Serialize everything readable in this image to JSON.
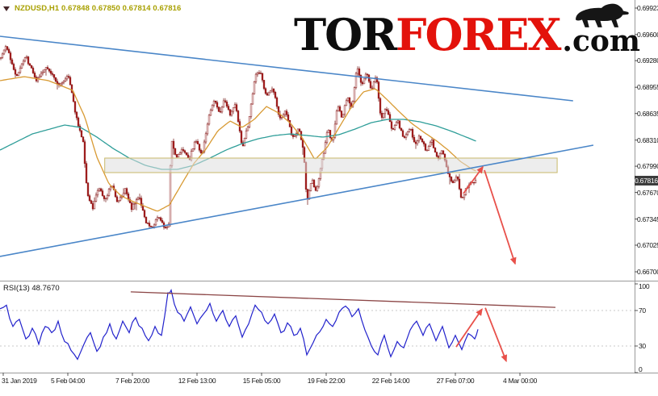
{
  "header": {
    "symbol_info": "NZDUSD,H1 0.67848 0.67850 0.67814 0.67816"
  },
  "logo": {
    "prefix": "TOR",
    "main": "FOREX",
    "suffix": ".com",
    "main_color": "#e3120b",
    "text_color": "#0d0d0d"
  },
  "price_axis": {
    "labels": [
      0.69923,
      0.696,
      0.6928,
      0.68955,
      0.68635,
      0.6831,
      0.6799,
      0.6767,
      0.67345,
      0.67025,
      0.667
    ],
    "current_price": "0.67816"
  },
  "rsi_panel": {
    "label": "RSI(13) 48.7670",
    "axis_labels": [
      100,
      70,
      30,
      0
    ]
  },
  "time_axis": {
    "labels": [
      "31 Jan 2019",
      "5 Feb 04:00",
      "7 Feb 20:00",
      "12 Feb 13:00",
      "15 Feb 05:00",
      "19 Feb 22:00",
      "22 Feb 14:00",
      "27 Feb 07:00",
      "4 Mar 00:00"
    ]
  },
  "chart_data": {
    "type": "candlestick",
    "symbol": "NZDUSD",
    "timeframe": "H1",
    "quote": {
      "open": 0.67848,
      "high": 0.6785,
      "low": 0.67814,
      "close": 0.67816
    },
    "y_range": [
      0.667,
      0.69923
    ],
    "grid": false,
    "arrow_color": "#e8504a",
    "price_path": [
      [
        0,
        0.69312
      ],
      [
        0.0102,
        0.6946
      ],
      [
        0.0254,
        0.69085
      ],
      [
        0.0407,
        0.69331
      ],
      [
        0.0573,
        0.69036
      ],
      [
        0.0738,
        0.69213
      ],
      [
        0.0916,
        0.68987
      ],
      [
        0.1081,
        0.69085
      ],
      [
        0.1209,
        0.68563
      ],
      [
        0.131,
        0.68297
      ],
      [
        0.1374,
        0.67656
      ],
      [
        0.1463,
        0.67479
      ],
      [
        0.1552,
        0.67735
      ],
      [
        0.1654,
        0.67577
      ],
      [
        0.1756,
        0.67774
      ],
      [
        0.1858,
        0.67538
      ],
      [
        0.1972,
        0.67705
      ],
      [
        0.2074,
        0.67479
      ],
      [
        0.2188,
        0.67637
      ],
      [
        0.229,
        0.67311
      ],
      [
        0.2392,
        0.67223
      ],
      [
        0.2494,
        0.674
      ],
      [
        0.2595,
        0.67223
      ],
      [
        0.2659,
        0.67282
      ],
      [
        0.2697,
        0.68346
      ],
      [
        0.2774,
        0.681
      ],
      [
        0.2875,
        0.68218
      ],
      [
        0.2977,
        0.6805
      ],
      [
        0.3079,
        0.68326
      ],
      [
        0.3181,
        0.68129
      ],
      [
        0.3282,
        0.68563
      ],
      [
        0.3384,
        0.68819
      ],
      [
        0.3461,
        0.68642
      ],
      [
        0.3537,
        0.68819
      ],
      [
        0.3626,
        0.68622
      ],
      [
        0.3715,
        0.6874
      ],
      [
        0.3817,
        0.68218
      ],
      [
        0.3919,
        0.68523
      ],
      [
        0.402,
        0.69085
      ],
      [
        0.4097,
        0.69154
      ],
      [
        0.4198,
        0.68839
      ],
      [
        0.43,
        0.68957
      ],
      [
        0.4402,
        0.68563
      ],
      [
        0.4504,
        0.68661
      ],
      [
        0.4606,
        0.68326
      ],
      [
        0.4707,
        0.68445
      ],
      [
        0.4784,
        0.68198
      ],
      [
        0.4835,
        0.67558
      ],
      [
        0.4911,
        0.67833
      ],
      [
        0.4987,
        0.67676
      ],
      [
        0.5064,
        0.68001
      ],
      [
        0.5165,
        0.68445
      ],
      [
        0.5242,
        0.68267
      ],
      [
        0.5318,
        0.6876
      ],
      [
        0.5394,
        0.68563
      ],
      [
        0.5471,
        0.68859
      ],
      [
        0.5547,
        0.68691
      ],
      [
        0.5623,
        0.69213
      ],
      [
        0.57,
        0.68987
      ],
      [
        0.5776,
        0.69154
      ],
      [
        0.5852,
        0.68918
      ],
      [
        0.5929,
        0.69085
      ],
      [
        0.6005,
        0.68563
      ],
      [
        0.6081,
        0.6872
      ],
      [
        0.6183,
        0.68425
      ],
      [
        0.626,
        0.68563
      ],
      [
        0.6361,
        0.68326
      ],
      [
        0.6463,
        0.68464
      ],
      [
        0.6539,
        0.68237
      ],
      [
        0.6616,
        0.68366
      ],
      [
        0.6718,
        0.68178
      ],
      [
        0.6794,
        0.68326
      ],
      [
        0.6896,
        0.6807
      ],
      [
        0.6972,
        0.68198
      ],
      [
        0.7048,
        0.67932
      ],
      [
        0.7125,
        0.67774
      ],
      [
        0.7201,
        0.67873
      ],
      [
        0.7277,
        0.67577
      ],
      [
        0.7354,
        0.67735
      ],
      [
        0.743,
        0.67794
      ],
      [
        0.7506,
        0.67816
      ]
    ],
    "ma_fast": {
      "name": "ma-orange",
      "color": "#d89a33",
      "points": [
        [
          0,
          0.69036
        ],
        [
          0.0382,
          0.69085
        ],
        [
          0.0763,
          0.69036
        ],
        [
          0.1145,
          0.68918
        ],
        [
          0.1336,
          0.68592
        ],
        [
          0.1527,
          0.681
        ],
        [
          0.1718,
          0.67774
        ],
        [
          0.1908,
          0.67627
        ],
        [
          0.2099,
          0.67558
        ],
        [
          0.229,
          0.67498
        ],
        [
          0.2481,
          0.67439
        ],
        [
          0.2672,
          0.67518
        ],
        [
          0.2863,
          0.67774
        ],
        [
          0.3053,
          0.68021
        ],
        [
          0.3244,
          0.68198
        ],
        [
          0.3435,
          0.68425
        ],
        [
          0.3626,
          0.68543
        ],
        [
          0.3817,
          0.68464
        ],
        [
          0.4008,
          0.68563
        ],
        [
          0.4198,
          0.6872
        ],
        [
          0.4389,
          0.68642
        ],
        [
          0.458,
          0.68513
        ],
        [
          0.4771,
          0.68326
        ],
        [
          0.4962,
          0.6807
        ],
        [
          0.5153,
          0.68218
        ],
        [
          0.5344,
          0.68464
        ],
        [
          0.5534,
          0.6871
        ],
        [
          0.5725,
          0.68898
        ],
        [
          0.5916,
          0.68937
        ],
        [
          0.6107,
          0.68799
        ],
        [
          0.6298,
          0.68651
        ],
        [
          0.6489,
          0.68513
        ],
        [
          0.6679,
          0.68405
        ],
        [
          0.687,
          0.68306
        ],
        [
          0.7061,
          0.68188
        ],
        [
          0.7252,
          0.6805
        ],
        [
          0.7443,
          0.67952
        ],
        [
          0.7532,
          0.67922
        ]
      ]
    },
    "ma_slow": {
      "name": "ma-teal",
      "color": "#2f9e99",
      "points": [
        [
          0,
          0.68188
        ],
        [
          0.0509,
          0.68385
        ],
        [
          0.1018,
          0.68494
        ],
        [
          0.1272,
          0.68464
        ],
        [
          0.1527,
          0.68346
        ],
        [
          0.1781,
          0.68208
        ],
        [
          0.2036,
          0.6809
        ],
        [
          0.229,
          0.68001
        ],
        [
          0.2545,
          0.67952
        ],
        [
          0.2799,
          0.67952
        ],
        [
          0.3053,
          0.68001
        ],
        [
          0.3308,
          0.6809
        ],
        [
          0.3562,
          0.68188
        ],
        [
          0.3817,
          0.68267
        ],
        [
          0.4071,
          0.68326
        ],
        [
          0.4326,
          0.68366
        ],
        [
          0.458,
          0.68385
        ],
        [
          0.4835,
          0.68366
        ],
        [
          0.5089,
          0.68346
        ],
        [
          0.5344,
          0.68376
        ],
        [
          0.5598,
          0.68445
        ],
        [
          0.5852,
          0.68523
        ],
        [
          0.6107,
          0.68563
        ],
        [
          0.6361,
          0.68563
        ],
        [
          0.6616,
          0.68533
        ],
        [
          0.687,
          0.68484
        ],
        [
          0.7125,
          0.68415
        ],
        [
          0.7379,
          0.68336
        ],
        [
          0.7532,
          0.68287
        ]
      ]
    },
    "trendlines": [
      {
        "name": "descending-resistance-line",
        "color": "#4a86c8",
        "from": [
          0,
          0.69578
        ],
        "to": [
          0.903,
          0.6879
        ]
      },
      {
        "name": "ascending-support-line",
        "color": "#4a86c8",
        "from": [
          0,
          0.66887
        ],
        "to": [
          0.935,
          0.68247
        ]
      }
    ],
    "zone": {
      "name": "resistance-zone",
      "x_from": 0.165,
      "x_to": 0.878,
      "price_from": 0.67913,
      "price_to": 0.6809,
      "fill": "#dedede",
      "border": "#c8b96a"
    },
    "forecast_arrows": [
      {
        "from": [
          0.7302,
          0.67656
        ],
        "to": [
          0.7608,
          0.67981
        ]
      },
      {
        "from": [
          0.7634,
          0.67942
        ],
        "to": [
          0.8117,
          0.66799
        ]
      }
    ],
    "rsi": {
      "period": 13,
      "last_value": 48.767,
      "color": "#2222cc",
      "levels": [
        70,
        30
      ],
      "points": [
        [
          0,
          72
        ],
        [
          0.0102,
          76
        ],
        [
          0.0204,
          52
        ],
        [
          0.0305,
          60
        ],
        [
          0.0407,
          38
        ],
        [
          0.0509,
          50
        ],
        [
          0.0611,
          32
        ],
        [
          0.0712,
          52
        ],
        [
          0.0814,
          45
        ],
        [
          0.0916,
          58
        ],
        [
          0.1018,
          35
        ],
        [
          0.112,
          25
        ],
        [
          0.1221,
          15
        ],
        [
          0.1323,
          32
        ],
        [
          0.1425,
          45
        ],
        [
          0.1527,
          24
        ],
        [
          0.1628,
          40
        ],
        [
          0.173,
          55
        ],
        [
          0.1832,
          38
        ],
        [
          0.1934,
          58
        ],
        [
          0.2036,
          45
        ],
        [
          0.2137,
          62
        ],
        [
          0.2239,
          50
        ],
        [
          0.2341,
          36
        ],
        [
          0.2443,
          52
        ],
        [
          0.2545,
          42
        ],
        [
          0.2646,
          90
        ],
        [
          0.2697,
          93
        ],
        [
          0.2799,
          68
        ],
        [
          0.2901,
          58
        ],
        [
          0.3003,
          74
        ],
        [
          0.3104,
          55
        ],
        [
          0.3206,
          66
        ],
        [
          0.3308,
          78
        ],
        [
          0.341,
          58
        ],
        [
          0.3511,
          70
        ],
        [
          0.3613,
          52
        ],
        [
          0.3715,
          64
        ],
        [
          0.3817,
          40
        ],
        [
          0.3919,
          55
        ],
        [
          0.402,
          76
        ],
        [
          0.4122,
          68
        ],
        [
          0.4224,
          55
        ],
        [
          0.4326,
          66
        ],
        [
          0.4427,
          45
        ],
        [
          0.4529,
          56
        ],
        [
          0.4631,
          42
        ],
        [
          0.4733,
          50
        ],
        [
          0.4835,
          20
        ],
        [
          0.4936,
          34
        ],
        [
          0.5038,
          46
        ],
        [
          0.514,
          60
        ],
        [
          0.5242,
          52
        ],
        [
          0.5344,
          68
        ],
        [
          0.5445,
          75
        ],
        [
          0.5547,
          63
        ],
        [
          0.5649,
          72
        ],
        [
          0.5751,
          48
        ],
        [
          0.5852,
          30
        ],
        [
          0.5954,
          20
        ],
        [
          0.6056,
          42
        ],
        [
          0.6158,
          18
        ],
        [
          0.626,
          35
        ],
        [
          0.6361,
          28
        ],
        [
          0.6463,
          48
        ],
        [
          0.6565,
          58
        ],
        [
          0.6667,
          42
        ],
        [
          0.6768,
          55
        ],
        [
          0.687,
          36
        ],
        [
          0.6972,
          52
        ],
        [
          0.7074,
          28
        ],
        [
          0.7176,
          42
        ],
        [
          0.7277,
          26
        ],
        [
          0.7379,
          44
        ],
        [
          0.7481,
          38
        ],
        [
          0.7532,
          48.8
        ]
      ],
      "trendline": {
        "name": "rsi-descending-trendline",
        "color": "#8b4545",
        "from": [
          0.206,
          91
        ],
        "to": [
          0.8753,
          73.5
        ]
      },
      "arrows": [
        {
          "from": [
            0.7188,
            29
          ],
          "to": [
            0.7596,
            71.5
          ]
        },
        {
          "from": [
            0.7647,
            73
          ],
          "to": [
            0.7977,
            13
          ]
        }
      ]
    }
  }
}
